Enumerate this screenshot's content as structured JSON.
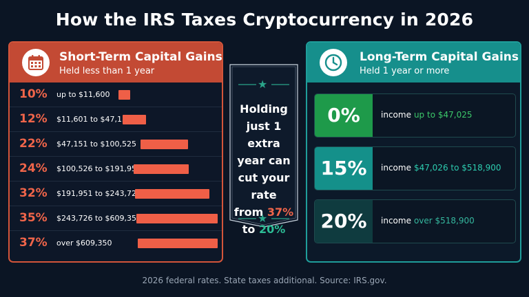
{
  "title": "How the IRS Taxes Cryptocurrency in 2026",
  "short_term": {
    "title": "Short-Term Capital Gains",
    "subtitle": "Held less than 1 year",
    "icon": "calendar-icon",
    "color": "#c34a34",
    "brackets": [
      {
        "rate": "10%",
        "range": "up to $11,600",
        "bar_level": 0.12
      },
      {
        "rate": "12%",
        "range": "$11,601 to $47,150",
        "bar_level": 0.24
      },
      {
        "rate": "22%",
        "range": "$47,151 to $100,525",
        "bar_level": 0.49
      },
      {
        "rate": "24%",
        "range": "$100,526 to $191,950",
        "bar_level": 0.57
      },
      {
        "rate": "32%",
        "range": "$191,951 to $243,725",
        "bar_level": 0.77
      },
      {
        "rate": "35%",
        "range": "$243,726 to $609,350",
        "bar_level": 0.91
      },
      {
        "rate": "37%",
        "range": "over $609,350",
        "bar_level": 1.0
      }
    ]
  },
  "banner": {
    "line1": "Holding",
    "line2": "just 1 extra",
    "line3": "year can",
    "line4": "cut your rate",
    "line5_pre": "from ",
    "line5_hl": "37%",
    "line6_pre": "to ",
    "line6_hl": "20%",
    "star_icon": "star-icon"
  },
  "long_term": {
    "title": "Long-Term Capital Gains",
    "subtitle": "Held 1 year or more",
    "icon": "clock-icon",
    "color": "#168f8c",
    "brackets": [
      {
        "rate": "0%",
        "income_label": "income",
        "range": "up to $47,025",
        "rate_bg": "#1e9a4a",
        "range_color": "#3cc86a"
      },
      {
        "rate": "15%",
        "income_label": "income",
        "range": "$47,026 to $518,900",
        "rate_bg": "#14908a",
        "range_color": "#2dcdb0"
      },
      {
        "rate": "20%",
        "income_label": "income",
        "range": "over $518,900",
        "rate_bg": "#0f3b3f",
        "range_color": "#35b79e"
      }
    ]
  },
  "footer": "2026 federal rates. State taxes additional. Source: IRS.gov."
}
